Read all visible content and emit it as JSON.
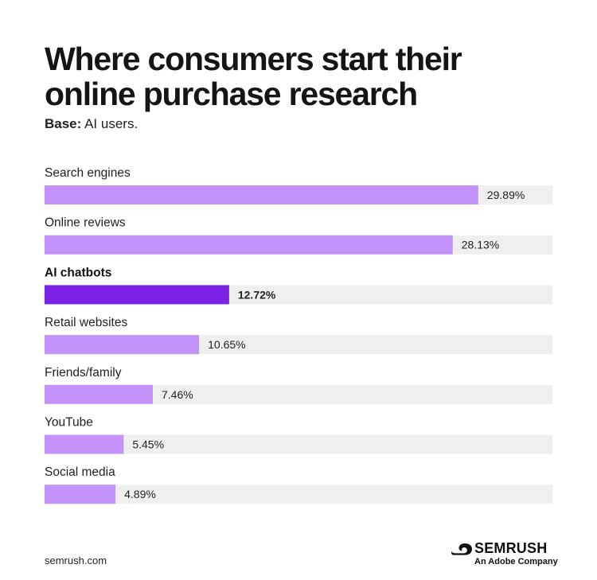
{
  "header": {
    "title": "Where consumers start their online purchase research",
    "subtitle_label": "Base:",
    "subtitle_text": " AI users."
  },
  "colors": {
    "bar_default": "#c392fb",
    "bar_highlight": "#7b22e6",
    "track": "#efefef"
  },
  "chart_data": {
    "type": "bar",
    "orientation": "horizontal",
    "categories": [
      "Search engines",
      "Online reviews",
      "AI chatbots",
      "Retail websites",
      "Friends/family",
      "YouTube",
      "Social media"
    ],
    "values": [
      29.89,
      28.13,
      12.72,
      10.65,
      7.46,
      5.45,
      4.89
    ],
    "value_labels": [
      "29.89%",
      "28.13%",
      "12.72%",
      "10.65%",
      "7.46%",
      "5.45%",
      "4.89%"
    ],
    "highlighted": [
      "AI chatbots"
    ],
    "xlim": [
      0,
      35
    ],
    "grid": false
  },
  "footer": {
    "url": "semrush.com",
    "brand": "SEMRUSH",
    "brand_tagline": "An Adobe Company"
  }
}
